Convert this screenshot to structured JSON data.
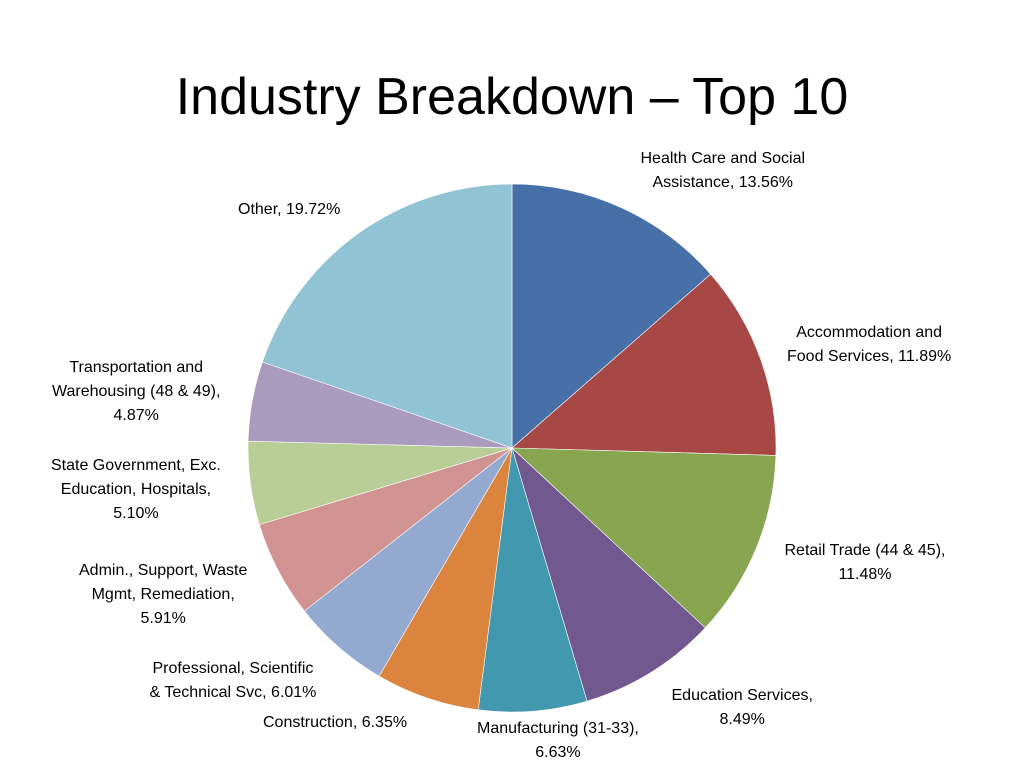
{
  "chart_data": {
    "type": "pie",
    "title": "Industry Breakdown – Top 10",
    "slices": [
      {
        "name": "Health Care and Social Assistance",
        "value": 13.56,
        "label_lines": [
          "Health Care and Social",
          "Assistance, 13.56%"
        ],
        "color": "#4770A8"
      },
      {
        "name": "Accommodation and Food Services",
        "value": 11.89,
        "label_lines": [
          "Accommodation and",
          "Food Services, 11.89%"
        ],
        "color": "#A84846"
      },
      {
        "name": "Retail Trade (44 & 45)",
        "value": 11.48,
        "label_lines": [
          "Retail Trade (44 & 45),",
          "11.48%"
        ],
        "color": "#88A550"
      },
      {
        "name": "Education Services",
        "value": 8.49,
        "label_lines": [
          "Education Services,",
          "8.49%"
        ],
        "color": "#71588F"
      },
      {
        "name": "Manufacturing (31-33)",
        "value": 6.63,
        "label_lines": [
          "Manufacturing (31-33),",
          "6.63%"
        ],
        "color": "#4298AF"
      },
      {
        "name": "Construction",
        "value": 6.35,
        "label_lines": [
          "Construction, 6.35%"
        ],
        "color": "#DB843D"
      },
      {
        "name": "Professional, Scientific & Technical Svc",
        "value": 6.01,
        "label_lines": [
          "Professional, Scientific",
          "& Technical Svc, 6.01%"
        ],
        "color": "#93A9CF"
      },
      {
        "name": "Admin., Support, Waste Mgmt, Remediation",
        "value": 5.91,
        "label_lines": [
          "Admin., Support, Waste",
          "Mgmt, Remediation,",
          "5.91%"
        ],
        "color": "#D19392"
      },
      {
        "name": "State Government, Exc. Education, Hospitals",
        "value": 5.1,
        "label_lines": [
          "State Government, Exc.",
          "Education, Hospitals,",
          "5.10%"
        ],
        "color": "#B9CD96"
      },
      {
        "name": "Transportation and Warehousing (48 & 49)",
        "value": 4.87,
        "label_lines": [
          "Transportation and",
          "Warehousing (48 & 49),",
          "4.87%"
        ],
        "color": "#A99BBD"
      },
      {
        "name": "Other",
        "value": 19.72,
        "label_lines": [
          "Other, 19.72%"
        ],
        "color": "#92C3D4"
      }
    ]
  }
}
